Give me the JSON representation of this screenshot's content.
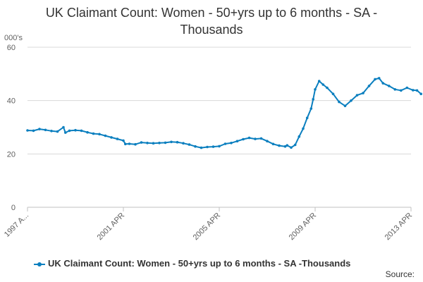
{
  "chart_data": {
    "type": "line",
    "title_lines": [
      "UK Claimant Count: Women - 50+yrs up to 6 months - SA -",
      "Thousands"
    ],
    "ylabel": "000's",
    "xlabel": "",
    "ylim": [
      0,
      60
    ],
    "yticks": [
      0,
      20,
      40,
      60
    ],
    "xtick_labels": [
      "1997 A...",
      "2001 APR",
      "2005 APR",
      "2009 APR",
      "2013 APR"
    ],
    "xtick_dates": [
      "1997-04",
      "2001-04",
      "2005-04",
      "2009-04",
      "2013-04"
    ],
    "grid": true,
    "legend_position": "bottom",
    "series": [
      {
        "name": "UK Claimant Count: Women - 50+yrs up to 6 months - SA -Thousands",
        "color": "#0b7fbf",
        "points": [
          [
            "1997-04",
            28.8
          ],
          [
            "1997-07",
            28.7
          ],
          [
            "1997-10",
            29.3
          ],
          [
            "1998-01",
            29.0
          ],
          [
            "1998-04",
            28.6
          ],
          [
            "1998-07",
            28.4
          ],
          [
            "1998-10",
            30.0
          ],
          [
            "1998-11",
            28.0
          ],
          [
            "1999-01",
            28.7
          ],
          [
            "1999-04",
            28.9
          ],
          [
            "1999-07",
            28.7
          ],
          [
            "1999-10",
            28.1
          ],
          [
            "2000-01",
            27.6
          ],
          [
            "2000-04",
            27.4
          ],
          [
            "2000-07",
            26.8
          ],
          [
            "2000-10",
            26.2
          ],
          [
            "2001-01",
            25.6
          ],
          [
            "2001-04",
            25.0
          ],
          [
            "2001-05",
            23.7
          ],
          [
            "2001-07",
            23.8
          ],
          [
            "2001-10",
            23.6
          ],
          [
            "2002-01",
            24.3
          ],
          [
            "2002-04",
            24.1
          ],
          [
            "2002-07",
            24.0
          ],
          [
            "2002-10",
            24.1
          ],
          [
            "2003-01",
            24.2
          ],
          [
            "2003-04",
            24.5
          ],
          [
            "2003-07",
            24.4
          ],
          [
            "2003-10",
            24.0
          ],
          [
            "2004-01",
            23.5
          ],
          [
            "2004-04",
            22.8
          ],
          [
            "2004-07",
            22.3
          ],
          [
            "2004-10",
            22.6
          ],
          [
            "2005-01",
            22.7
          ],
          [
            "2005-04",
            22.9
          ],
          [
            "2005-07",
            23.8
          ],
          [
            "2005-10",
            24.1
          ],
          [
            "2006-01",
            24.8
          ],
          [
            "2006-04",
            25.5
          ],
          [
            "2006-07",
            26.0
          ],
          [
            "2006-10",
            25.6
          ],
          [
            "2007-01",
            25.8
          ],
          [
            "2007-04",
            24.8
          ],
          [
            "2007-07",
            23.7
          ],
          [
            "2007-10",
            23.1
          ],
          [
            "2008-01",
            22.8
          ],
          [
            "2008-02",
            23.2
          ],
          [
            "2008-04",
            22.4
          ],
          [
            "2008-06",
            23.4
          ],
          [
            "2008-08",
            26.5
          ],
          [
            "2008-10",
            29.5
          ],
          [
            "2008-12",
            33.5
          ],
          [
            "2009-02",
            37.0
          ],
          [
            "2009-03",
            40.5
          ],
          [
            "2009-04",
            44.2
          ],
          [
            "2009-06",
            47.3
          ],
          [
            "2009-08",
            46.0
          ],
          [
            "2009-10",
            44.8
          ],
          [
            "2010-01",
            42.5
          ],
          [
            "2010-04",
            39.5
          ],
          [
            "2010-07",
            38.0
          ],
          [
            "2010-10",
            40.0
          ],
          [
            "2011-01",
            42.0
          ],
          [
            "2011-04",
            42.8
          ],
          [
            "2011-07",
            45.5
          ],
          [
            "2011-10",
            48.0
          ],
          [
            "2011-12",
            48.4
          ],
          [
            "2012-02",
            46.5
          ],
          [
            "2012-05",
            45.5
          ],
          [
            "2012-08",
            44.2
          ],
          [
            "2012-11",
            43.8
          ],
          [
            "2013-02",
            44.8
          ],
          [
            "2013-05",
            43.9
          ],
          [
            "2013-07",
            43.8
          ],
          [
            "2013-09",
            42.5
          ]
        ]
      }
    ]
  },
  "source_label": "Source:"
}
